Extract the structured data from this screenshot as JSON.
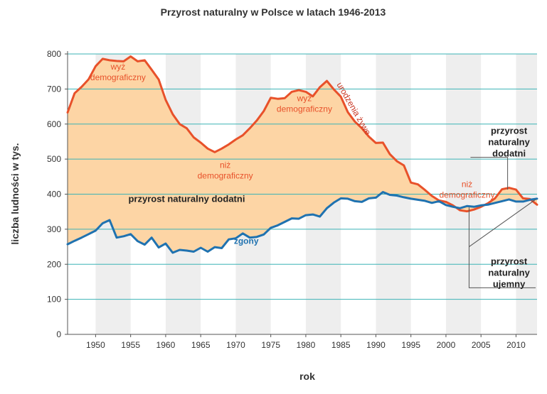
{
  "chart_data": {
    "type": "line",
    "title": "Przyrost naturalny w Polsce w latach 1946-2013",
    "xlabel": "rok",
    "ylabel": "liczba ludności w tys.",
    "xlim": [
      1946,
      2013
    ],
    "ylim": [
      0,
      800
    ],
    "x_ticks": [
      1950,
      1955,
      1960,
      1965,
      1970,
      1975,
      1980,
      1985,
      1990,
      1995,
      2000,
      2005,
      2010
    ],
    "y_ticks": [
      0,
      100,
      200,
      300,
      400,
      500,
      600,
      700,
      800
    ],
    "grid": true,
    "legend": "none",
    "colors": {
      "births_line": "#e8512a",
      "deaths_line": "#1f72b0",
      "surplus_fill": "#fdd5a5",
      "stripe": "#eeeeee",
      "grid": "#3bb3b6",
      "axis": "#555555"
    },
    "x": [
      1946,
      1947,
      1948,
      1949,
      1950,
      1951,
      1952,
      1953,
      1954,
      1955,
      1956,
      1957,
      1958,
      1959,
      1960,
      1961,
      1962,
      1963,
      1964,
      1965,
      1966,
      1967,
      1968,
      1969,
      1970,
      1971,
      1972,
      1973,
      1974,
      1975,
      1976,
      1977,
      1978,
      1979,
      1980,
      1981,
      1982,
      1983,
      1984,
      1985,
      1986,
      1987,
      1988,
      1989,
      1990,
      1991,
      1992,
      1993,
      1994,
      1995,
      1996,
      1997,
      1998,
      1999,
      2000,
      2001,
      2002,
      2003,
      2004,
      2005,
      2006,
      2007,
      2008,
      2009,
      2010,
      2011,
      2012,
      2013
    ],
    "series": [
      {
        "name": "urodzenia żywe",
        "values": [
          633,
          688,
          706,
          728,
          765,
          786,
          782,
          780,
          779,
          793,
          779,
          782,
          755,
          727,
          669,
          628,
          600,
          588,
          562,
          547,
          530,
          520,
          530,
          542,
          556,
          568,
          588,
          610,
          637,
          675,
          672,
          674,
          692,
          697,
          692,
          679,
          705,
          723,
          699,
          678,
          634,
          607,
          588,
          564,
          546,
          547,
          514,
          494,
          482,
          433,
          428,
          412,
          395,
          382,
          378,
          368,
          354,
          351,
          356,
          364,
          374,
          388,
          414,
          418,
          413,
          388,
          386,
          370
        ]
      },
      {
        "name": "zgony",
        "values": [
          257,
          267,
          276,
          286,
          296,
          317,
          326,
          276,
          280,
          286,
          266,
          256,
          276,
          248,
          259,
          233,
          241,
          239,
          236,
          247,
          236,
          249,
          246,
          271,
          274,
          288,
          276,
          278,
          285,
          304,
          311,
          321,
          331,
          330,
          340,
          342,
          336,
          360,
          376,
          388,
          387,
          380,
          378,
          388,
          390,
          406,
          398,
          396,
          391,
          387,
          384,
          381,
          375,
          380,
          369,
          364,
          360,
          366,
          364,
          368,
          370,
          375,
          380,
          385,
          379,
          379,
          384,
          387
        ]
      }
    ],
    "annotations": [
      {
        "text": "wyż demograficzny",
        "x": 1953.2,
        "y": 755
      },
      {
        "text": "niż demograficzny",
        "x": 1968.5,
        "y": 475
      },
      {
        "text": "wyż demograficzny",
        "x": 1979.8,
        "y": 665
      },
      {
        "text": "urodzenia żywe",
        "x": 1986.5,
        "y": 640
      },
      {
        "text": "przyrost naturalny dodatni",
        "x": 1963,
        "y": 378
      },
      {
        "text": "zgony",
        "x": 1971.5,
        "y": 258
      },
      {
        "text": "niż demograficzny",
        "x": 2003,
        "y": 420
      },
      {
        "text": "przyrost naturalny dodatni",
        "x": 2009,
        "y": 572
      },
      {
        "text": "przyrost naturalny ujemny",
        "x": 2009,
        "y": 200
      }
    ]
  }
}
